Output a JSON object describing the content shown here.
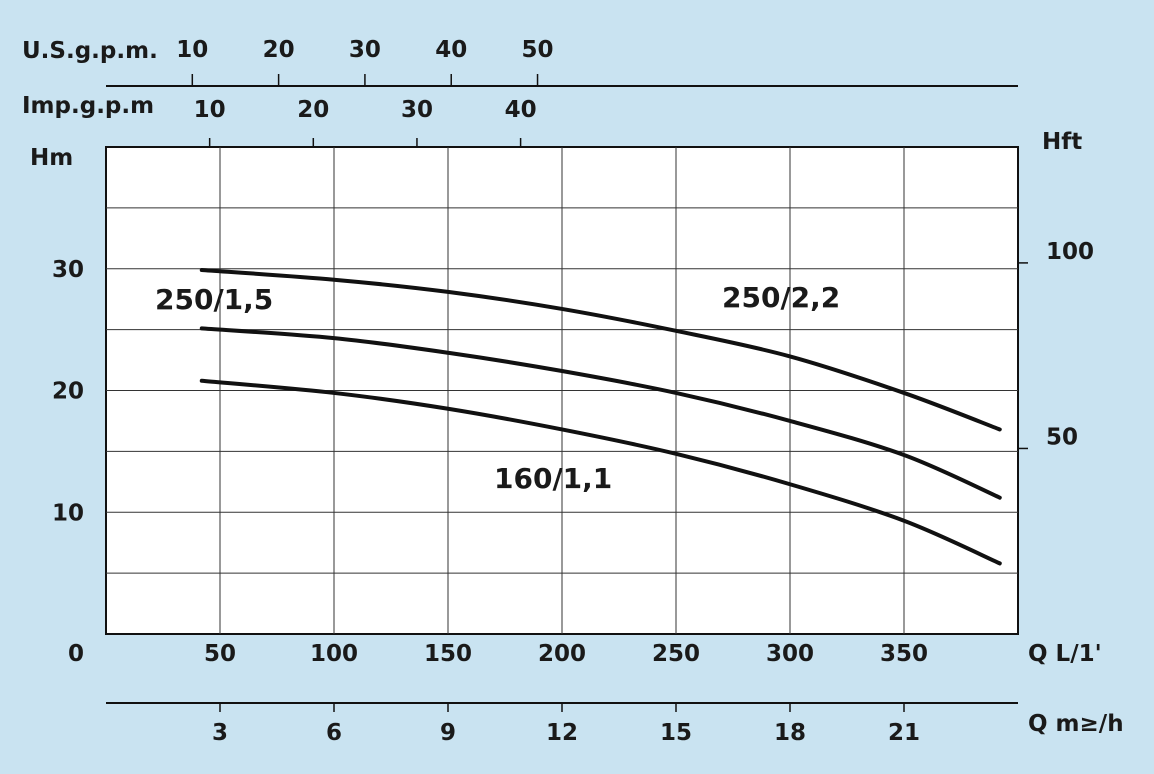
{
  "chart_data": {
    "type": "line",
    "background_color": "#c9e3f1",
    "plot_background_color": "#ffffff",
    "line_color": "#111111",
    "grid": true,
    "x_primary": {
      "label": "Q L/1'",
      "ticks": [
        50,
        100,
        150,
        200,
        250,
        300,
        350
      ],
      "zero_label": "0",
      "range": [
        0,
        400
      ]
    },
    "x_m3h": {
      "label": "Q m≥/h",
      "ticks": [
        "3",
        "6",
        "9",
        "12",
        "15",
        "18",
        "21"
      ]
    },
    "x_usgpm": {
      "label": "U.S.g.p.m.",
      "ticks": [
        "10",
        "20",
        "30",
        "40",
        "50"
      ]
    },
    "x_impgpm": {
      "label": "Imp.g.p.m",
      "ticks": [
        "10",
        "20",
        "30",
        "40"
      ]
    },
    "y_left": {
      "label": "Hm",
      "ticks": [
        "10",
        "20",
        "30"
      ],
      "range": [
        0,
        40
      ]
    },
    "y_right": {
      "label": "Hft",
      "ticks": [
        "50",
        "100"
      ]
    },
    "series": [
      {
        "name": "250/2,2",
        "x": [
          42,
          100,
          150,
          200,
          250,
          300,
          350,
          392
        ],
        "y": [
          29.9,
          29.1,
          28.1,
          26.7,
          24.9,
          22.8,
          19.8,
          16.8
        ]
      },
      {
        "name": "250/1,5",
        "x": [
          42,
          100,
          150,
          200,
          250,
          300,
          350,
          392
        ],
        "y": [
          25.1,
          24.3,
          23.1,
          21.6,
          19.8,
          17.5,
          14.7,
          11.2
        ]
      },
      {
        "name": "160/1,1",
        "x": [
          42,
          100,
          150,
          200,
          250,
          300,
          350,
          392
        ],
        "y": [
          20.8,
          19.8,
          18.5,
          16.8,
          14.8,
          12.3,
          9.3,
          5.8
        ]
      }
    ]
  }
}
